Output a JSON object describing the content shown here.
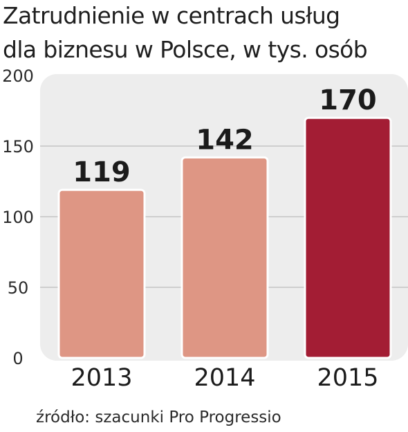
{
  "title_lines": [
    "Zatrudnienie w centrach usług",
    "dla biznesu w Polsce, w tys. osób"
  ],
  "source": "źródło: szacunki Pro Progressio",
  "colors": {
    "plot_background": "#ededed",
    "gridline": "#c4c4c4",
    "bar_light": "#de9684",
    "bar_highlight": "#a31d34",
    "text": "#1b1b1b"
  },
  "chart_data": {
    "type": "bar",
    "categories": [
      "2013",
      "2014",
      "2015"
    ],
    "values": [
      119,
      142,
      170
    ],
    "data_labels": [
      "119",
      "142",
      "170"
    ],
    "highlighted_category": "2015",
    "ylim": [
      0,
      200
    ],
    "yticks": [
      0,
      50,
      100,
      150,
      200
    ],
    "ytick_labels": [
      "0",
      "50",
      "100",
      "150",
      "200"
    ],
    "grid": true,
    "legend": "none"
  }
}
